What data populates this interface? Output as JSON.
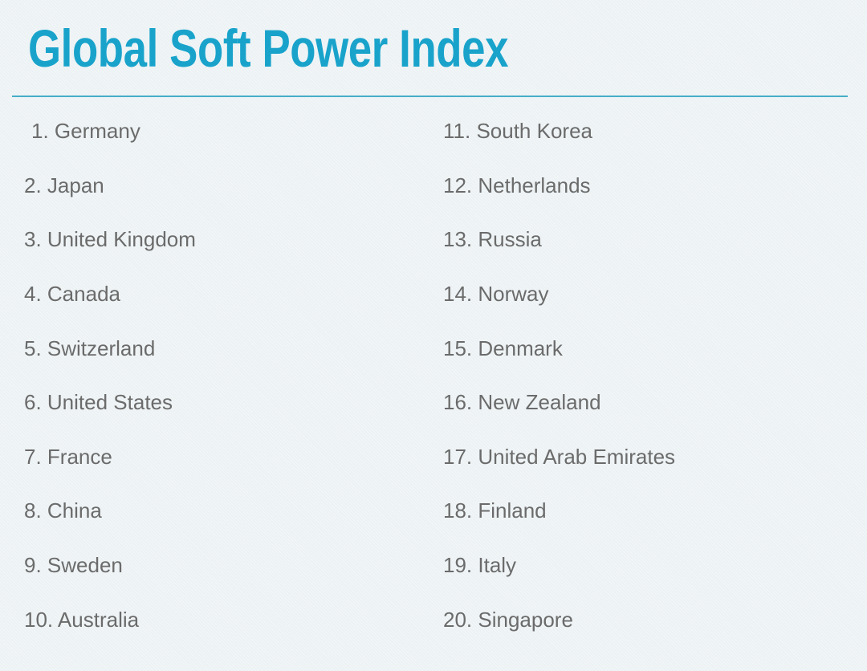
{
  "title": "Global Soft Power Index",
  "colors": {
    "background": "#ecf2f4",
    "title_text": "#19a3cb",
    "divider": "#46aec8",
    "list_text": "#6b6b6b"
  },
  "ranking": {
    "items": [
      {
        "rank": 1,
        "country": "Germany",
        "label": "1. Germany"
      },
      {
        "rank": 2,
        "country": "Japan",
        "label": "2. Japan"
      },
      {
        "rank": 3,
        "country": "United Kingdom",
        "label": "3. United Kingdom"
      },
      {
        "rank": 4,
        "country": "Canada",
        "label": "4. Canada"
      },
      {
        "rank": 5,
        "country": "Switzerland",
        "label": "5. Switzerland"
      },
      {
        "rank": 6,
        "country": "United States",
        "label": "6. United States"
      },
      {
        "rank": 7,
        "country": "France",
        "label": "7. France"
      },
      {
        "rank": 8,
        "country": "China",
        "label": "8. China"
      },
      {
        "rank": 9,
        "country": "Sweden",
        "label": "9. Sweden"
      },
      {
        "rank": 10,
        "country": "Australia",
        "label": "10. Australia"
      },
      {
        "rank": 11,
        "country": "South Korea",
        "label": "11. South Korea"
      },
      {
        "rank": 12,
        "country": "Netherlands",
        "label": "12. Netherlands"
      },
      {
        "rank": 13,
        "country": "Russia",
        "label": "13. Russia"
      },
      {
        "rank": 14,
        "country": "Norway",
        "label": "14. Norway"
      },
      {
        "rank": 15,
        "country": "Denmark",
        "label": "15. Denmark"
      },
      {
        "rank": 16,
        "country": "New Zealand",
        "label": "16. New Zealand"
      },
      {
        "rank": 17,
        "country": "United Arab Emirates",
        "label": "17. United Arab Emirates"
      },
      {
        "rank": 18,
        "country": "Finland",
        "label": "18. Finland"
      },
      {
        "rank": 19,
        "country": "Italy",
        "label": "19. Italy"
      },
      {
        "rank": 20,
        "country": "Singapore",
        "label": "20. Singapore"
      }
    ]
  }
}
